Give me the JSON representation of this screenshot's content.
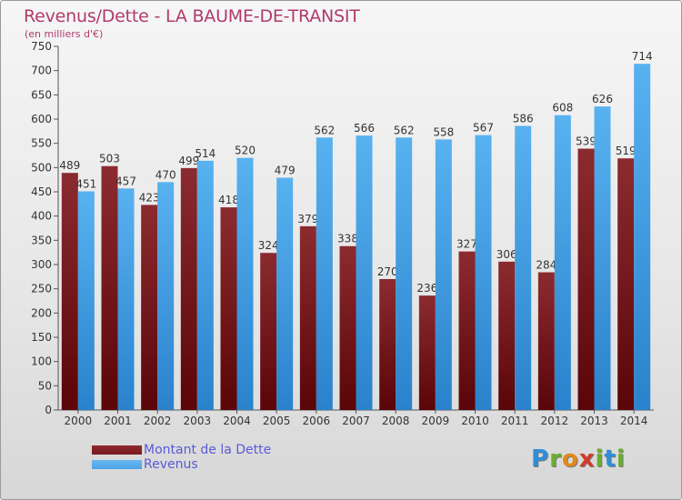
{
  "title": "Revenus/Dette - LA BAUME-DE-TRANSIT",
  "subtitle": "(en milliers d'€)",
  "logo_letters": [
    "P",
    "r",
    "o",
    "x",
    "i",
    "t",
    "i"
  ],
  "logo_colors": [
    "#2f8fd6",
    "#6aae2e",
    "#e08a1a",
    "#d23a2a",
    "#6aae2e",
    "#2f8fd6",
    "#6aae2e"
  ],
  "legend": [
    {
      "label": "Montant de la Dette",
      "color": "#7a1a1f"
    },
    {
      "label": "Revenus",
      "color": "#4aa3e8"
    }
  ],
  "chart_data": {
    "type": "bar",
    "categories": [
      "2000",
      "2001",
      "2002",
      "2003",
      "2004",
      "2005",
      "2006",
      "2007",
      "2008",
      "2009",
      "2010",
      "2011",
      "2012",
      "2013",
      "2014"
    ],
    "series": [
      {
        "name": "Montant de la Dette",
        "color": "#7a1a1f",
        "values": [
          489,
          503,
          423,
          499,
          418,
          324,
          379,
          338,
          270,
          236,
          327,
          306,
          284,
          539,
          519
        ]
      },
      {
        "name": "Revenus",
        "color": "#4aa3e8",
        "values": [
          451,
          457,
          470,
          514,
          520,
          479,
          562,
          566,
          562,
          558,
          567,
          586,
          608,
          626,
          714
        ]
      }
    ],
    "ylim": [
      0,
      750
    ],
    "ytick_step": 50,
    "grid": false
  }
}
